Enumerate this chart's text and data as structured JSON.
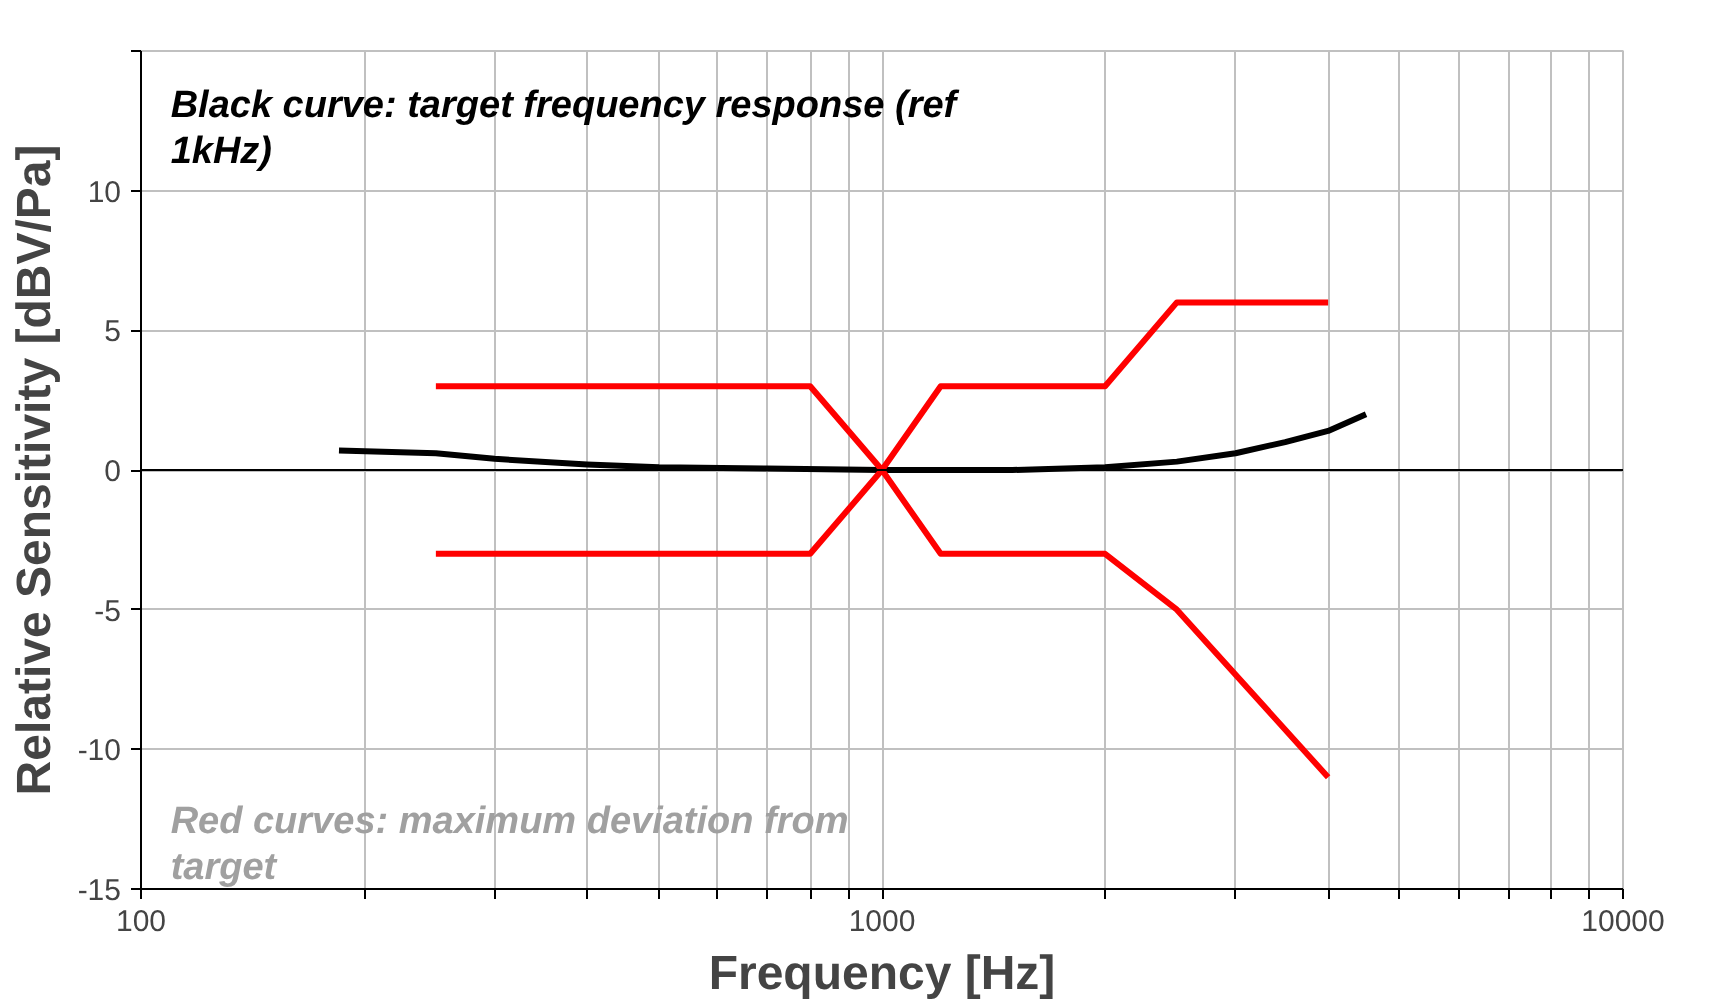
{
  "chart_data": {
    "type": "line",
    "xlabel": "Frequency [Hz]",
    "ylabel": "Relative Sensitivity [dBV/Pa]",
    "log": "x",
    "xlim": [
      100,
      10000
    ],
    "ylim": [
      -15,
      15
    ],
    "xticks": [
      100,
      {
        "value": 200,
        "label": null
      },
      {
        "value": 300,
        "label": null
      },
      {
        "value": 400,
        "label": null
      },
      {
        "value": 500,
        "label": null
      },
      {
        "value": 600,
        "label": null
      },
      {
        "value": 700,
        "label": null
      },
      {
        "value": 800,
        "label": null
      },
      {
        "value": 900,
        "label": null
      },
      1000,
      {
        "value": 2000,
        "label": null
      },
      {
        "value": 3000,
        "label": null
      },
      {
        "value": 4000,
        "label": null
      },
      {
        "value": 5000,
        "label": null
      },
      {
        "value": 6000,
        "label": null
      },
      {
        "value": 7000,
        "label": null
      },
      {
        "value": 8000,
        "label": null
      },
      {
        "value": 9000,
        "label": null
      },
      10000
    ],
    "yticks": [
      -15,
      -10,
      -5,
      0,
      5,
      10,
      {
        "value": 15,
        "label": null
      }
    ],
    "grid": true,
    "line_style": "solid",
    "ref_lines": [
      {
        "axis": "y",
        "value": 0,
        "color": "#000000"
      }
    ],
    "annotations": [
      "Black curve: target frequency response (ref 1kHz)",
      "Red curves: maximum deviation from target"
    ],
    "series": [
      {
        "color": "#000000",
        "x": [
          185,
          250,
          300,
          400,
          500,
          700,
          1000,
          1500,
          2000,
          2500,
          3000,
          3500,
          4000,
          4500
        ],
        "values": [
          0.7,
          0.6,
          0.4,
          0.2,
          0.1,
          0.05,
          0,
          0,
          0.1,
          0.3,
          0.6,
          1.0,
          1.4,
          2.0
        ]
      },
      {
        "color": "#ff0000",
        "x": [
          250,
          800,
          1000,
          1200,
          2000,
          2500,
          4000
        ],
        "values": [
          3,
          3,
          0,
          3,
          3,
          6,
          6
        ]
      },
      {
        "color": "#ff0000",
        "x": [
          250,
          800,
          1000,
          1200,
          2000,
          2500,
          4000
        ],
        "values": [
          -3,
          -3,
          0,
          -3,
          -3,
          -5,
          -11
        ]
      }
    ]
  }
}
